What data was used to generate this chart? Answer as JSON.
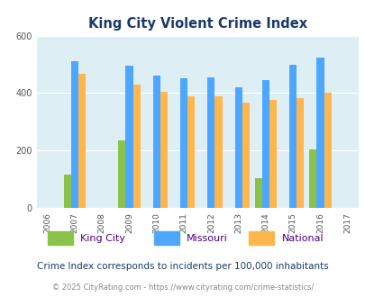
{
  "title": "King City Violent Crime Index",
  "bar_years": [
    2007,
    2009,
    2010,
    2011,
    2012,
    2013,
    2014,
    2015,
    2016
  ],
  "kc_values": [
    115,
    235,
    0,
    0,
    0,
    0,
    105,
    0,
    205
  ],
  "mo_values": [
    510,
    495,
    460,
    450,
    455,
    420,
    445,
    500,
    525
  ],
  "nat_values": [
    468,
    430,
    405,
    390,
    390,
    368,
    375,
    383,
    400
  ],
  "color_kc": "#8bc34a",
  "color_mo": "#4da6ff",
  "color_nat": "#ffb74d",
  "bg_color": "#ddeef5",
  "ylim": [
    0,
    600
  ],
  "yticks": [
    0,
    200,
    400,
    600
  ],
  "xlabel_years": [
    2006,
    2007,
    2008,
    2009,
    2010,
    2011,
    2012,
    2013,
    2014,
    2015,
    2016,
    2017
  ],
  "subtitle": "Crime Index corresponds to incidents per 100,000 inhabitants",
  "footer": "© 2025 CityRating.com - https://www.cityrating.com/crime-statistics/",
  "title_color": "#1a3a6b",
  "legend_text_color": "#4b0082",
  "subtitle_color": "#1a3a6b",
  "footer_color": "#888888",
  "bar_width": 0.27
}
